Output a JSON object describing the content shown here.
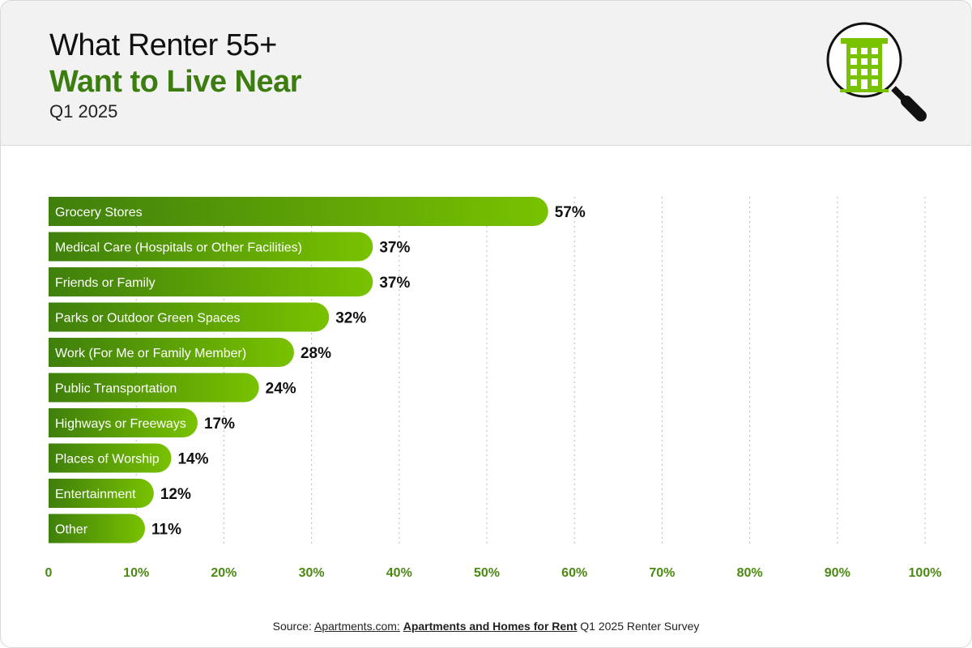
{
  "header": {
    "title_line1": "What Renter 55+",
    "title_line2": "Want to Live Near",
    "subtitle": "Q1 2025"
  },
  "icon": "magnifier-building-icon",
  "colors": {
    "accent": "#3b7d0f",
    "bar_start": "#3f7f0c",
    "bar_end": "#79c200",
    "tick_label": "#4a8a12"
  },
  "chart_data": {
    "type": "bar",
    "orientation": "horizontal",
    "title": "What Renter 55+ Want to Live Near",
    "subtitle": "Q1 2025",
    "categories": [
      "Grocery Stores",
      "Medical Care (Hospitals or Other Facilities)",
      "Friends or Family",
      "Parks or Outdoor Green Spaces",
      "Work (For Me or Family Member)",
      "Public Transportation",
      "Highways or Freeways",
      "Places of Worship",
      "Entertainment",
      "Other"
    ],
    "values": [
      57,
      37,
      37,
      32,
      28,
      24,
      17,
      14,
      12,
      11
    ],
    "value_labels": [
      "57%",
      "37%",
      "37%",
      "32%",
      "28%",
      "24%",
      "17%",
      "14%",
      "12%",
      "11%"
    ],
    "xlim": [
      0,
      100
    ],
    "xticks": [
      0,
      10,
      20,
      30,
      40,
      50,
      60,
      70,
      80,
      90,
      100
    ],
    "xtick_labels": [
      "0",
      "10%",
      "20%",
      "30%",
      "40%",
      "50%",
      "60%",
      "70%",
      "80%",
      "90%",
      "100%"
    ],
    "grid": true,
    "xlabel": "",
    "ylabel": ""
  },
  "source": {
    "prefix": "Source: ",
    "link_text": "Apartments.com:",
    "link_bold_text": "Apartments and Homes for Rent",
    "suffix": " Q1 2025 Renter Survey"
  }
}
